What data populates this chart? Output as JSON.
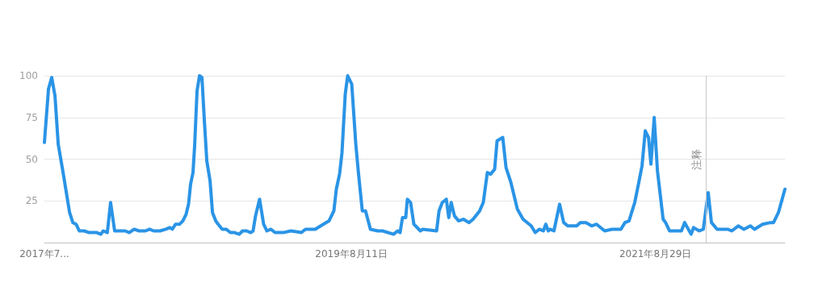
{
  "chart_data": {
    "type": "line",
    "x": [
      "2017-07-16",
      "2017-07-26",
      "2017-08-03",
      "2017-08-11",
      "2017-08-19",
      "2017-08-31",
      "2017-09-08",
      "2017-09-16",
      "2017-09-24",
      "2017-10-02",
      "2017-10-10",
      "2017-10-22",
      "2017-11-03",
      "2017-11-22",
      "2017-12-02",
      "2017-12-08",
      "2017-12-18",
      "2017-12-26",
      "2018-01-05",
      "2018-01-17",
      "2018-01-31",
      "2018-02-10",
      "2018-02-22",
      "2018-03-06",
      "2018-03-22",
      "2018-04-01",
      "2018-04-11",
      "2018-04-27",
      "2018-05-11",
      "2018-05-21",
      "2018-05-27",
      "2018-06-04",
      "2018-06-14",
      "2018-06-22",
      "2018-06-30",
      "2018-07-06",
      "2018-07-11",
      "2018-07-17",
      "2018-07-21",
      "2018-07-27",
      "2018-08-02",
      "2018-08-08",
      "2018-08-14",
      "2018-08-20",
      "2018-08-28",
      "2018-09-03",
      "2018-09-11",
      "2018-09-17",
      "2018-09-27",
      "2018-10-07",
      "2018-10-17",
      "2018-10-27",
      "2018-11-08",
      "2018-11-16",
      "2018-11-26",
      "2018-12-06",
      "2018-12-12",
      "2018-12-18",
      "2018-12-28",
      "2019-01-07",
      "2019-01-15",
      "2019-01-25",
      "2019-02-04",
      "2019-02-14",
      "2019-02-24",
      "2019-03-15",
      "2019-04-10",
      "2019-04-20",
      "2019-05-14",
      "2019-06-03",
      "2019-06-17",
      "2019-06-29",
      "2019-07-05",
      "2019-07-13",
      "2019-07-19",
      "2019-07-27",
      "2019-08-02",
      "2019-08-12",
      "2019-08-22",
      "2019-08-28",
      "2019-09-07",
      "2019-09-15",
      "2019-09-27",
      "2019-10-15",
      "2019-10-27",
      "2019-11-23",
      "2019-12-03",
      "2019-12-09",
      "2019-12-15",
      "2019-12-23",
      "2019-12-27",
      "2020-01-04",
      "2020-01-12",
      "2020-01-28",
      "2020-02-03",
      "2020-03-08",
      "2020-03-14",
      "2020-03-22",
      "2020-04-01",
      "2020-04-07",
      "2020-04-13",
      "2020-04-21",
      "2020-05-01",
      "2020-05-13",
      "2020-05-27",
      "2020-06-06",
      "2020-06-22",
      "2020-07-01",
      "2020-07-11",
      "2020-07-19",
      "2020-07-29",
      "2020-08-04",
      "2020-08-18",
      "2020-08-26",
      "2020-09-07",
      "2020-09-23",
      "2020-10-07",
      "2020-10-27",
      "2020-11-06",
      "2020-11-16",
      "2020-11-26",
      "2020-12-02",
      "2020-12-08",
      "2020-12-12",
      "2020-12-22",
      "2021-01-05",
      "2021-01-15",
      "2021-01-25",
      "2021-02-16",
      "2021-02-25",
      "2021-03-11",
      "2021-03-25",
      "2021-04-06",
      "2021-04-26",
      "2021-05-14",
      "2021-06-05",
      "2021-06-15",
      "2021-06-25",
      "2021-07-09",
      "2021-07-19",
      "2021-07-27",
      "2021-08-04",
      "2021-08-12",
      "2021-08-18",
      "2021-08-26",
      "2021-09-03",
      "2021-09-17",
      "2021-09-23",
      "2021-10-03",
      "2021-11-01",
      "2021-11-09",
      "2021-11-25",
      "2021-12-01",
      "2021-12-15",
      "2021-12-25",
      "2022-01-06",
      "2022-01-14",
      "2022-01-28",
      "2022-02-23",
      "2022-03-05",
      "2022-03-21",
      "2022-04-04",
      "2022-04-20",
      "2022-04-30",
      "2022-05-20",
      "2022-06-09",
      "2022-06-16",
      "2022-06-28",
      "2022-07-14"
    ],
    "series": [
      {
        "color": "#2a94e6",
        "values": [
          60,
          92,
          99,
          88,
          59,
          42,
          30,
          18,
          12,
          11,
          7,
          7,
          6,
          6,
          5,
          7,
          6,
          24,
          7,
          7,
          7,
          6,
          8,
          7,
          7,
          8,
          7,
          7,
          8,
          9,
          8,
          11,
          11,
          13,
          17,
          23,
          35,
          42,
          58,
          91,
          100,
          99,
          73,
          49,
          37,
          18,
          13,
          11,
          8,
          8,
          6,
          6,
          5,
          7,
          7,
          6,
          7,
          16,
          26,
          11,
          7,
          8,
          6,
          6,
          6,
          7,
          6,
          8,
          8,
          11,
          13,
          19,
          32,
          41,
          54,
          89,
          100,
          95,
          59,
          43,
          19,
          19,
          8,
          7,
          7,
          5,
          7,
          6,
          15,
          15,
          26,
          24,
          11,
          7,
          8,
          7,
          19,
          24,
          26,
          15,
          24,
          16,
          13,
          14,
          12,
          14,
          19,
          24,
          42,
          41,
          44,
          61,
          63,
          45,
          36,
          20,
          14,
          10,
          6,
          8,
          7,
          11,
          7,
          8,
          7,
          23,
          12,
          10,
          10,
          12,
          12,
          10,
          11,
          7,
          8,
          8,
          12,
          13,
          24,
          36,
          46,
          67,
          63,
          47,
          75,
          43,
          14,
          12,
          7,
          7,
          12,
          5,
          9,
          7,
          8,
          30,
          12,
          8,
          8,
          7,
          10,
          8,
          10,
          8,
          11,
          12,
          12,
          18,
          32
        ]
      }
    ],
    "xlim": [
      "2017-07-16",
      "2022-07-14"
    ],
    "xticks": [
      {
        "value": "2017-07-16",
        "label": "2017年7..."
      },
      {
        "value": "2019-08-11",
        "label": "2019年8月11日"
      },
      {
        "value": "2021-08-29",
        "label": "2021年8月29日"
      }
    ],
    "ylim": [
      0,
      100
    ],
    "yticks": [
      25,
      50,
      75,
      100
    ],
    "grid": "y",
    "marker": "none",
    "line_style": "solid",
    "ref_lines": [
      {
        "axis": "x",
        "value": "2022-01-01",
        "label": "注释",
        "color": "#c8c8c8"
      }
    ]
  }
}
